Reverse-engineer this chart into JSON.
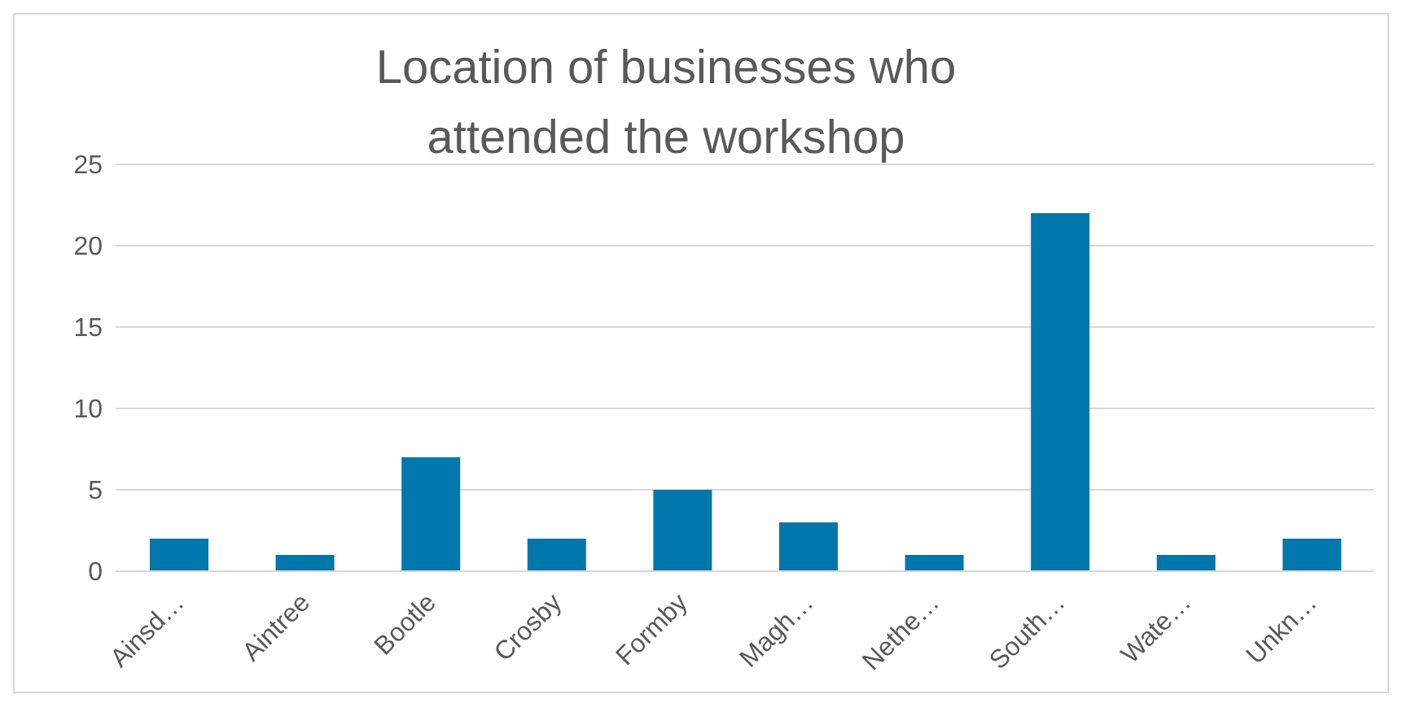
{
  "chart_data": {
    "type": "bar",
    "title": "Location of businesses who attended the workshop",
    "categories": [
      "Ainsd…",
      "Aintree",
      "Bootle",
      "Crosby",
      "Formby",
      "Magh…",
      "Nethe…",
      "South…",
      "Wate…",
      "Unkn…"
    ],
    "values": [
      2,
      1,
      7,
      2,
      5,
      3,
      1,
      22,
      1,
      2
    ],
    "color": "#0077aa",
    "ylim": [
      0,
      25
    ],
    "yticks": [
      0,
      5,
      10,
      15,
      20,
      25
    ],
    "grid": "y"
  }
}
